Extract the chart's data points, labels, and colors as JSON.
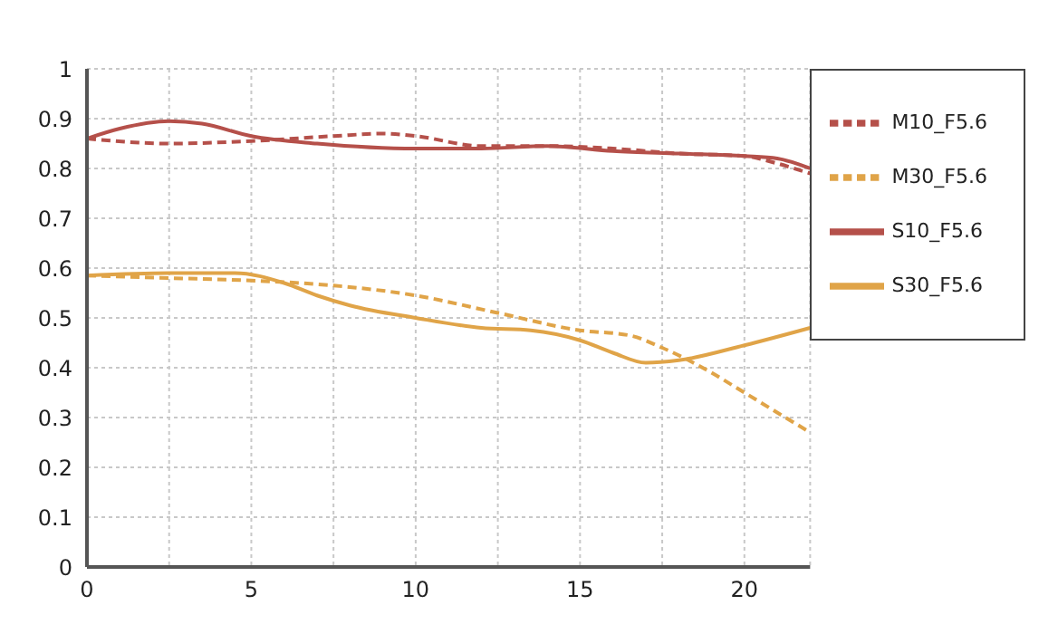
{
  "chart_data": {
    "type": "line",
    "xlim": [
      0,
      22
    ],
    "xticks": [
      0,
      {
        "value": 2.5,
        "label": null
      },
      5,
      {
        "value": 7.5,
        "label": null
      },
      10,
      {
        "value": 12.5,
        "label": null
      },
      15,
      {
        "value": 17.5,
        "label": null
      },
      20
    ],
    "ylim": [
      0,
      1
    ],
    "yticks": [
      0,
      0.1,
      0.2,
      0.3,
      0.4,
      0.5,
      0.6,
      0.7,
      0.8,
      0.9,
      1
    ],
    "grid": true,
    "legend": "right",
    "marker": "none",
    "series": [
      {
        "name": "S10_F5.6",
        "color": "#b5504a",
        "line_style": "solid",
        "x": [
          0,
          1,
          2.5,
          3.5,
          5,
          7,
          10,
          12,
          14,
          16,
          18,
          20,
          21,
          22
        ],
        "values": [
          0.86,
          0.88,
          0.895,
          0.89,
          0.865,
          0.85,
          0.84,
          0.84,
          0.845,
          0.835,
          0.83,
          0.825,
          0.82,
          0.8
        ]
      },
      {
        "name": "M10_F5.6",
        "color": "#b5504a",
        "line_style": "dashed",
        "x": [
          0,
          2.5,
          5,
          7.5,
          9,
          10,
          12,
          14,
          16,
          18,
          20,
          21,
          22
        ],
        "values": [
          0.86,
          0.85,
          0.855,
          0.865,
          0.87,
          0.865,
          0.845,
          0.845,
          0.84,
          0.83,
          0.825,
          0.81,
          0.79
        ]
      },
      {
        "name": "S30_F5.6",
        "color": "#e0a448",
        "line_style": "solid",
        "x": [
          0,
          2.5,
          4.5,
          6,
          7,
          8,
          10,
          12,
          13.5,
          15,
          16,
          17,
          18,
          20,
          22
        ],
        "values": [
          0.585,
          0.59,
          0.59,
          0.57,
          0.545,
          0.525,
          0.5,
          0.48,
          0.475,
          0.455,
          0.43,
          0.41,
          0.415,
          0.445,
          0.48
        ]
      },
      {
        "name": "M30_F5.6",
        "color": "#e0a448",
        "line_style": "dashed",
        "x": [
          0,
          2.5,
          5,
          7.5,
          10,
          12.5,
          15,
          16.5,
          17.5,
          19,
          20,
          22
        ],
        "values": [
          0.585,
          0.58,
          0.575,
          0.565,
          0.545,
          0.51,
          0.475,
          0.465,
          0.44,
          0.39,
          0.35,
          0.27
        ]
      }
    ]
  }
}
